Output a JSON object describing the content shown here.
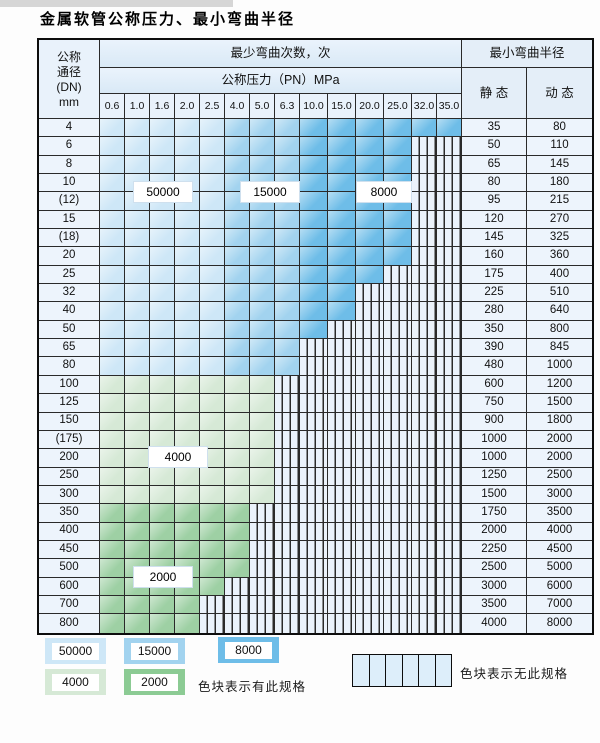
{
  "title": "金属软管公称压力、最小弯曲半径",
  "table": {
    "corner_header_lines": [
      "公称",
      "通径",
      "(DN)",
      "mm"
    ],
    "bend_cycles_header": "最少弯曲次数，次",
    "pressure_header": "公称压力（PN）MPa",
    "radius_header": "最小弯曲半径",
    "static_header": "静 态",
    "dynamic_header": "动 态",
    "pn_columns": [
      "0.6",
      "1.0",
      "1.6",
      "2.0",
      "2.5",
      "4.0",
      "5.0",
      "6.3",
      "10.0",
      "15.0",
      "20.0",
      "25.0",
      "32.0",
      "35.0"
    ],
    "blue_shade_by_column": {
      "cols_1_to_5": "50000",
      "cols_6_to_8": "15000",
      "cols_9_to_14": "8000"
    },
    "green_shade_by_row": {
      "dn_100_to_300": "4000",
      "dn_350_to_800": "2000"
    },
    "rows": [
      {
        "dn": "4",
        "zone": "blue",
        "colored_through": 14,
        "static": "35",
        "dynamic": "80"
      },
      {
        "dn": "6",
        "zone": "blue",
        "colored_through": 12,
        "static": "50",
        "dynamic": "110"
      },
      {
        "dn": "8",
        "zone": "blue",
        "colored_through": 12,
        "static": "65",
        "dynamic": "145"
      },
      {
        "dn": "10",
        "zone": "blue",
        "colored_through": 12,
        "static": "80",
        "dynamic": "180"
      },
      {
        "dn": "(12)",
        "zone": "blue",
        "colored_through": 12,
        "static": "95",
        "dynamic": "215"
      },
      {
        "dn": "15",
        "zone": "blue",
        "colored_through": 12,
        "static": "120",
        "dynamic": "270"
      },
      {
        "dn": "(18)",
        "zone": "blue",
        "colored_through": 12,
        "static": "145",
        "dynamic": "325"
      },
      {
        "dn": "20",
        "zone": "blue",
        "colored_through": 12,
        "static": "160",
        "dynamic": "360"
      },
      {
        "dn": "25",
        "zone": "blue",
        "colored_through": 11,
        "static": "175",
        "dynamic": "400"
      },
      {
        "dn": "32",
        "zone": "blue",
        "colored_through": 10,
        "static": "225",
        "dynamic": "510"
      },
      {
        "dn": "40",
        "zone": "blue",
        "colored_through": 10,
        "static": "280",
        "dynamic": "640"
      },
      {
        "dn": "50",
        "zone": "blue",
        "colored_through": 9,
        "static": "350",
        "dynamic": "800"
      },
      {
        "dn": "65",
        "zone": "blue",
        "colored_through": 8,
        "static": "390",
        "dynamic": "845"
      },
      {
        "dn": "80",
        "zone": "blue",
        "colored_through": 8,
        "static": "480",
        "dynamic": "1000"
      },
      {
        "dn": "100",
        "zone": "green-light",
        "colored_through": 7,
        "static": "600",
        "dynamic": "1200"
      },
      {
        "dn": "125",
        "zone": "green-light",
        "colored_through": 7,
        "static": "750",
        "dynamic": "1500"
      },
      {
        "dn": "150",
        "zone": "green-light",
        "colored_through": 7,
        "static": "900",
        "dynamic": "1800"
      },
      {
        "dn": "(175)",
        "zone": "green-light",
        "colored_through": 7,
        "static": "1000",
        "dynamic": "2000"
      },
      {
        "dn": "200",
        "zone": "green-light",
        "colored_through": 7,
        "static": "1000",
        "dynamic": "2000"
      },
      {
        "dn": "250",
        "zone": "green-light",
        "colored_through": 7,
        "static": "1250",
        "dynamic": "2500"
      },
      {
        "dn": "300",
        "zone": "green-light",
        "colored_through": 7,
        "static": "1500",
        "dynamic": "3000"
      },
      {
        "dn": "350",
        "zone": "green-dark",
        "colored_through": 6,
        "static": "1750",
        "dynamic": "3500"
      },
      {
        "dn": "400",
        "zone": "green-dark",
        "colored_through": 6,
        "static": "2000",
        "dynamic": "4000"
      },
      {
        "dn": "450",
        "zone": "green-dark",
        "colored_through": 6,
        "static": "2250",
        "dynamic": "4500"
      },
      {
        "dn": "500",
        "zone": "green-dark",
        "colored_through": 6,
        "static": "2500",
        "dynamic": "5000"
      },
      {
        "dn": "600",
        "zone": "green-dark",
        "colored_through": 5,
        "static": "3000",
        "dynamic": "6000"
      },
      {
        "dn": "700",
        "zone": "green-dark",
        "colored_through": 4,
        "static": "3500",
        "dynamic": "7000"
      },
      {
        "dn": "800",
        "zone": "green-dark",
        "colored_through": 4,
        "static": "4000",
        "dynamic": "8000"
      }
    ],
    "overlay_labels": [
      {
        "id": "label-50000",
        "text": "50000"
      },
      {
        "id": "label-15000",
        "text": "15000"
      },
      {
        "id": "label-8000",
        "text": "8000"
      },
      {
        "id": "label-4000",
        "text": "4000"
      },
      {
        "id": "label-2000",
        "text": "2000"
      }
    ]
  },
  "colors": {
    "blue_50000": "#cee7f7",
    "blue_15000": "#a2d3ef",
    "blue_8000": "#6ebde8",
    "green_4000": "#d6e9d6",
    "green_2000": "#9ed0a4",
    "legend_green_2000": "#8ccb94",
    "hatch_fill": "#eaf2fb",
    "grid_line": "#2a2a2a"
  },
  "legend": {
    "swatches_row1": [
      {
        "value": "50000",
        "color_key": "blue_50000"
      },
      {
        "value": "15000",
        "color_key": "blue_15000"
      },
      {
        "value": "8000",
        "color_key": "blue_8000"
      }
    ],
    "swatches_row2": [
      {
        "value": "4000",
        "color_key": "green_4000"
      },
      {
        "value": "2000",
        "color_key": "legend_green_2000"
      }
    ],
    "has_spec_caption": "色块表示有此规格",
    "no_spec_caption": "色块表示无此规格"
  }
}
